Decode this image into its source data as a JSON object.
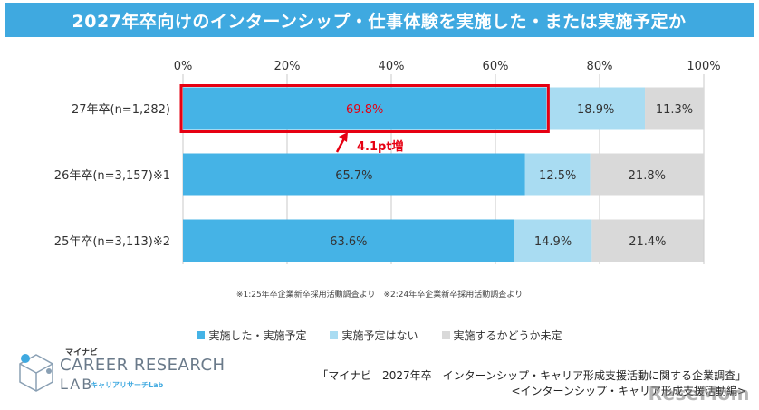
{
  "title": "2027年卒向けのインターンシップ・仕事体験を実施した・または実施予定か",
  "chart_data": {
    "type": "bar",
    "orientation": "horizontal",
    "stacked": true,
    "xlim": [
      0,
      100
    ],
    "x_ticks": [
      "0%",
      "20%",
      "40%",
      "60%",
      "80%",
      "100%"
    ],
    "categories": [
      "27年卒(n=1,282)",
      "26年卒(n=3,157)※1",
      "25年卒(n=3,113)※2"
    ],
    "series": [
      {
        "name": "実施した・実施予定",
        "color": "#45b3e6",
        "values": [
          69.8,
          65.7,
          63.6
        ],
        "labels": [
          "69.8%",
          "65.7%",
          "63.6%"
        ]
      },
      {
        "name": "実施予定はない",
        "color": "#a9dcf2",
        "values": [
          18.9,
          12.5,
          14.9
        ],
        "labels": [
          "18.9%",
          "12.5%",
          "14.9%"
        ]
      },
      {
        "name": "実施するかどうか未定",
        "color": "#d9d9d9",
        "values": [
          11.3,
          21.8,
          21.4
        ],
        "labels": [
          "11.3%",
          "21.8%",
          "21.4%"
        ]
      }
    ],
    "highlight_index": 0,
    "highlight_color": "#e60012",
    "annotation": "4.1pt増",
    "grid": true,
    "legend_position": "bottom"
  },
  "note": "※1:25年卒企業新卒採用活動調査より　※2:24年卒企業新卒採用活動調査より",
  "logo": {
    "brand": "マイナビ",
    "line1": "CAREER RESEARCH",
    "line2": "LAB",
    "tagline": "キャリアリサーチLab"
  },
  "source": {
    "line1": "「マイナビ　2027年卒　インターンシップ・キャリア形成支援活動に関する企業調査」",
    "line2": "<インターンシップ・キャリア形成支援活動編>"
  },
  "watermark": "ReseMom"
}
